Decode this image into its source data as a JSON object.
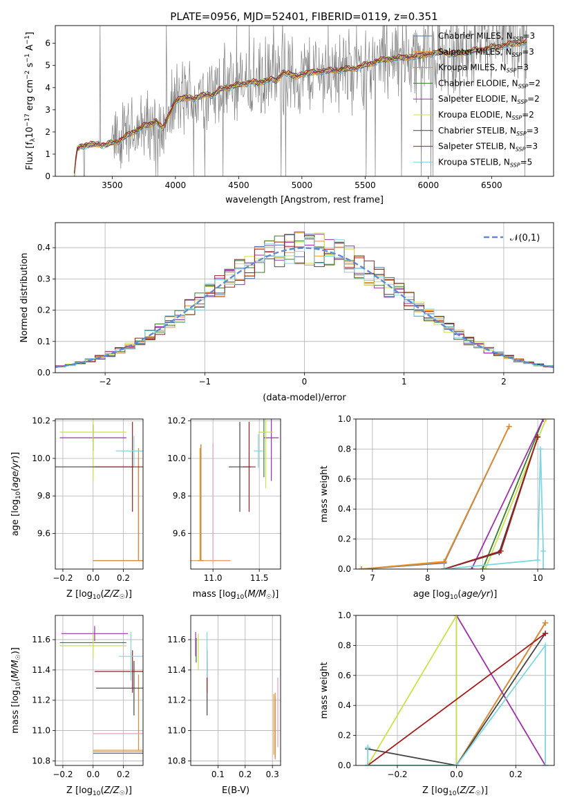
{
  "figure": {
    "title": "PLATE=0956, MJD=52401, FIBERID=0119, z=0.351",
    "colors": {
      "chabrier_miles": "#4c72b0",
      "salpeter_miles": "#f39c12",
      "kroupa_miles": "#d98b3a",
      "chabrier_elodie": "#3a7a2e",
      "salpeter_elodie": "#9b30a8",
      "kroupa_elodie": "#cbe04a",
      "chabrier_stelib": "#444444",
      "salpeter_stelib": "#a61b1b",
      "kroupa_stelib": "#7fd6e0",
      "data": "#808080",
      "normal": "#5b8bd6",
      "grid": "#b0b0b0"
    }
  },
  "chart_data": [
    {
      "id": "spectrum",
      "type": "line",
      "title": "PLATE=0956, MJD=52401, FIBERID=0119, z=0.351",
      "xlabel": "wavelength [Angstrom, rest frame]",
      "ylabel": "Flux [f_λ 10^-17 erg cm^-2 s^-1 A^-1]",
      "xlim": [
        3050,
        6990
      ],
      "ylim": [
        0,
        6.8
      ],
      "xticks": [
        3500,
        4000,
        4500,
        5000,
        5500,
        6000,
        6500
      ],
      "yticks": [
        0,
        1,
        2,
        3,
        4,
        5,
        6
      ],
      "grid": false,
      "legend_position": "top-right",
      "legend": [
        "Chabrier MILES, N_SSP=3",
        "Salpeter MILES, N_SSP=3",
        "Kroupa MILES, N_SSP=3",
        "Chabrier ELODIE, N_SSP=2",
        "Salpeter ELODIE, N_SSP=2",
        "Kroupa ELODIE, N_SSP=2",
        "Chabrier STELIB, N_SSP=3",
        "Salpeter STELIB, N_SSP=3",
        "Kroupa STELIB, N_SSP=5"
      ],
      "model_curve": {
        "x": [
          3200,
          3220,
          3250,
          3300,
          3350,
          3400,
          3450,
          3500,
          3550,
          3600,
          3650,
          3700,
          3750,
          3800,
          3850,
          3900,
          3950,
          4000,
          4050,
          4100,
          4150,
          4200,
          4250,
          4300,
          4350,
          4400,
          4450,
          4500,
          4550,
          4600,
          4650,
          4700,
          4750,
          4800,
          4850,
          4900,
          4950,
          5000,
          5100,
          5200,
          5300,
          5400,
          5500,
          5600,
          5700,
          5800,
          5900,
          6000,
          6100,
          6200,
          6300,
          6400,
          6500,
          6600,
          6700,
          6780
        ],
        "y": [
          0,
          1.2,
          1.35,
          1.4,
          1.42,
          1.45,
          1.4,
          1.5,
          1.6,
          1.75,
          1.95,
          2.1,
          2.25,
          2.35,
          2.5,
          2.1,
          2.8,
          3.4,
          3.5,
          3.55,
          3.5,
          3.6,
          3.7,
          3.65,
          3.9,
          4.0,
          4.05,
          4.1,
          4.2,
          4.25,
          4.2,
          4.3,
          4.35,
          4.3,
          4.7,
          4.6,
          4.5,
          4.6,
          4.7,
          4.75,
          4.8,
          4.85,
          5.0,
          5.2,
          5.3,
          5.35,
          5.4,
          5.5,
          5.6,
          5.5,
          5.6,
          5.7,
          5.8,
          5.9,
          6.0,
          6.05
        ]
      }
    },
    {
      "id": "residuals",
      "type": "line",
      "xlabel": "(data-model)/error",
      "ylabel": "Normed distribution",
      "xlim": [
        -2.5,
        2.5
      ],
      "ylim": [
        0,
        0.48
      ],
      "xticks": [
        -2,
        -1,
        0,
        1,
        2
      ],
      "yticks": [
        0,
        0.1,
        0.2,
        0.3,
        0.4
      ],
      "grid": true,
      "legend_position": "top-right",
      "legend": [
        "𝒩(0,1)"
      ]
    },
    {
      "id": "age_vs_Z",
      "type": "scatter",
      "xlabel": "Z [log10(Z/Z☉)]",
      "ylabel": "age [log10(age/yr)]",
      "xlim": [
        -0.25,
        0.33
      ],
      "ylim": [
        9.41,
        10.21
      ],
      "xticks": [
        -0.2,
        0.0,
        0.2
      ],
      "yticks": [
        9.6,
        9.8,
        10.0,
        10.2
      ],
      "grid": true,
      "points": [
        {
          "model": "chabrier_miles",
          "x": 0.3,
          "y": 9.455,
          "xerr": 0.3,
          "yerr": [
            0,
            0.55
          ]
        },
        {
          "model": "salpeter_miles",
          "x": 0.3,
          "y": 9.455,
          "xerr": 0.28,
          "yerr": [
            0,
            0.5
          ]
        },
        {
          "model": "kroupa_miles",
          "x": 0.3,
          "y": 9.455,
          "xerr": 0.3,
          "yerr": [
            0,
            0.6
          ]
        },
        {
          "model": "chabrier_elodie",
          "x": 0.0,
          "y": 10.14,
          "xerr": 0.0,
          "yerr": 0.04
        },
        {
          "model": "salpeter_elodie",
          "x": 0.0,
          "y": 10.11,
          "xerr": 0.22,
          "yerr": 0.07
        },
        {
          "model": "kroupa_elodie",
          "x": 0.0,
          "y": 10.14,
          "xerr": 0.22,
          "yerr": 0.26
        },
        {
          "model": "chabrier_stelib",
          "x": 0.01,
          "y": 9.955,
          "xerr": 0.26,
          "yerr": 0.0
        },
        {
          "model": "salpeter_stelib",
          "x": 0.26,
          "y": 9.955,
          "xerr": 0.25,
          "yerr": 0.24
        },
        {
          "model": "kroupa_stelib",
          "x": 0.27,
          "y": 10.04,
          "xerr": 0.12,
          "yerr": 0.08
        }
      ]
    },
    {
      "id": "age_vs_mass",
      "type": "scatter",
      "xlabel": "mass [log10(M/M☉)]",
      "ylabel": "",
      "xlim": [
        10.76,
        11.73
      ],
      "ylim": [
        9.41,
        10.21
      ],
      "xticks": [
        11.0,
        11.5
      ],
      "yticks": [
        9.6,
        9.8,
        10.0,
        10.2
      ],
      "grid": true,
      "points": [
        {
          "model": "chabrier_miles",
          "x": 10.87,
          "y": 9.455,
          "xerr": 0.03,
          "yerr": [
            0,
            0.62
          ]
        },
        {
          "model": "salpeter_miles",
          "x": 10.86,
          "y": 9.455,
          "xerr": 0.02,
          "yerr": [
            0,
            0.6
          ]
        },
        {
          "model": "kroupa_miles",
          "x": 10.87,
          "y": 9.455,
          "xerr": 0.32,
          "yerr": [
            0,
            0.62
          ]
        },
        {
          "model": "chabrier_elodie",
          "x": 11.55,
          "y": 10.14,
          "xerr": 0.0,
          "yerr": 0.24
        },
        {
          "model": "salpeter_elodie",
          "x": 11.63,
          "y": 10.11,
          "xerr": 0.08,
          "yerr": 0.23
        },
        {
          "model": "kroupa_elodie",
          "x": 11.57,
          "y": 10.14,
          "xerr": 0.08,
          "yerr": 0.3
        },
        {
          "model": "chabrier_stelib",
          "x": 11.29,
          "y": 9.955,
          "xerr": 0.12,
          "yerr": 0.24
        },
        {
          "model": "salpeter_stelib",
          "x": 11.39,
          "y": 9.955,
          "xerr": 0.07,
          "yerr": 0.24
        },
        {
          "model": "kroupa_stelib",
          "x": 11.49,
          "y": 10.04,
          "xerr": 0.05,
          "yerr": 0.09
        },
        {
          "model": "kroupa_miles_alt",
          "x": 11.0,
          "y": 9.76,
          "xerr": 0.0,
          "yerr": 0.32
        }
      ]
    },
    {
      "id": "weight_vs_age",
      "type": "line",
      "xlabel": "age [log10(age/yr)]",
      "ylabel": "mass weight",
      "xlim": [
        6.7,
        10.3
      ],
      "ylim": [
        0,
        1.0
      ],
      "xticks": [
        7,
        8,
        9,
        10
      ],
      "yticks": [
        0.0,
        0.2,
        0.4,
        0.6,
        0.8,
        1.0
      ],
      "grid": true,
      "series": [
        {
          "model": "chabrier_miles",
          "x": [
            6.8,
            8.3,
            9.48
          ],
          "y": [
            0.0,
            0.04,
            0.95
          ]
        },
        {
          "model": "salpeter_miles",
          "x": [
            6.8,
            8.3,
            9.48
          ],
          "y": [
            0.0,
            0.05,
            0.95
          ]
        },
        {
          "model": "kroupa_miles",
          "x": [
            6.8,
            8.3,
            9.48
          ],
          "y": [
            0.0,
            0.045,
            0.95
          ]
        },
        {
          "model": "chabrier_elodie",
          "x": [
            9.0,
            10.1
          ],
          "y": [
            0.0,
            1.0
          ]
        },
        {
          "model": "salpeter_elodie",
          "x": [
            8.8,
            10.1
          ],
          "y": [
            0.0,
            1.0
          ]
        },
        {
          "model": "kroupa_elodie",
          "x": [
            9.05,
            10.15
          ],
          "y": [
            0.0,
            1.0
          ]
        },
        {
          "model": "chabrier_stelib",
          "x": [
            8.3,
            9.3,
            10.0
          ],
          "y": [
            0.0,
            0.11,
            0.88
          ]
        },
        {
          "model": "salpeter_stelib",
          "x": [
            8.3,
            9.33,
            10.0
          ],
          "y": [
            0.0,
            0.12,
            0.88
          ]
        },
        {
          "model": "kroupa_stelib",
          "x": [
            8.3,
            10.0,
            10.05,
            10.1,
            10.1
          ],
          "y": [
            0.0,
            0.06,
            0.8,
            0.12,
            0.0
          ]
        }
      ]
    },
    {
      "id": "mass_vs_Z",
      "type": "scatter",
      "xlabel": "Z [log10(Z/Z☉)]",
      "ylabel": "mass [log10(M/M☉)]",
      "xlim": [
        -0.25,
        0.33
      ],
      "ylim": [
        10.77,
        11.76
      ],
      "xticks": [
        -0.2,
        0.0,
        0.2
      ],
      "yticks": [
        10.8,
        11.0,
        11.2,
        11.4,
        11.6
      ],
      "grid": true,
      "points": [
        {
          "model": "chabrier_miles",
          "x": 0.3,
          "y": 10.85,
          "xerr": 0.3,
          "yerr": 0.0
        },
        {
          "model": "salpeter_miles",
          "x": 0.3,
          "y": 10.86,
          "xerr": 0.3,
          "yerr": 0.0
        },
        {
          "model": "kroupa_miles",
          "x": 0.3,
          "y": 10.87,
          "xerr": 0.3,
          "yerr": [
            0,
            0.5
          ]
        },
        {
          "model": "chabrier_elodie",
          "x": 0.0,
          "y": 11.58,
          "xerr": 0.22,
          "yerr": 0.0
        },
        {
          "model": "salpeter_elodie",
          "x": 0.01,
          "y": 11.64,
          "xerr": 0.22,
          "yerr": 0.05
        },
        {
          "model": "kroupa_elodie",
          "x": 0.0,
          "y": 11.56,
          "xerr": 0.22,
          "yerr": 0.08
        },
        {
          "model": "chabrier_stelib",
          "x": 0.27,
          "y": 11.28,
          "xerr": 0.25,
          "yerr": 0.18
        },
        {
          "model": "salpeter_stelib",
          "x": 0.26,
          "y": 11.39,
          "xerr": 0.25,
          "yerr": 0.14
        },
        {
          "model": "kroupa_stelib",
          "x": 0.25,
          "y": 11.49,
          "xerr": 0.08,
          "yerr": 0.16
        },
        {
          "model": "pink",
          "x": 0.3,
          "y": 10.98,
          "xerr": 0.3,
          "yerr": 0.0
        }
      ]
    },
    {
      "id": "mass_vs_ebv",
      "type": "scatter",
      "xlabel": "E(B-V)",
      "ylabel": "",
      "xlim": [
        0.0,
        0.33
      ],
      "ylim": [
        10.77,
        11.76
      ],
      "xticks": [
        0.1,
        0.2,
        0.3
      ],
      "yticks": [
        10.8,
        11.0,
        11.2,
        11.4,
        11.6
      ],
      "grid": true,
      "points": [
        {
          "model": "chabrier_miles",
          "x": 0.31,
          "y": 11.02,
          "xerr": 0.0,
          "yerr": 0.2
        },
        {
          "model": "salpeter_miles",
          "x": 0.305,
          "y": 11.04,
          "xerr": 0.0,
          "yerr": 0.2
        },
        {
          "model": "kroupa_miles",
          "x": 0.31,
          "y": 11.03,
          "xerr": 0.0,
          "yerr": 0.22
        },
        {
          "model": "chabrier_elodie",
          "x": 0.02,
          "y": 11.53,
          "xerr": 0.0,
          "yerr": 0.08
        },
        {
          "model": "salpeter_elodie",
          "x": 0.018,
          "y": 11.57,
          "xerr": 0.0,
          "yerr": 0.08
        },
        {
          "model": "kroupa_elodie",
          "x": 0.028,
          "y": 11.52,
          "xerr": 0.0,
          "yerr": 0.12
        },
        {
          "model": "chabrier_stelib",
          "x": 0.06,
          "y": 11.28,
          "xerr": 0.0,
          "yerr": 0.18
        },
        {
          "model": "salpeter_stelib",
          "x": 0.06,
          "y": 11.39,
          "xerr": 0.0,
          "yerr": 0.14
        },
        {
          "model": "kroupa_stelib",
          "x": 0.06,
          "y": 11.5,
          "xerr": 0.0,
          "yerr": 0.15
        },
        {
          "model": "pink",
          "x": 0.32,
          "y": 11.12,
          "xerr": 0.0,
          "yerr": 0.23
        }
      ]
    },
    {
      "id": "weight_vs_Z",
      "type": "line",
      "xlabel": "Z [log10(Z/Z☉)]",
      "ylabel": "mass weight",
      "xlim": [
        -0.34,
        0.33
      ],
      "ylim": [
        0,
        1.0
      ],
      "xticks": [
        -0.2,
        0.0,
        0.2
      ],
      "yticks": [
        0.0,
        0.2,
        0.4,
        0.6,
        0.8,
        1.0
      ],
      "grid": true,
      "series": [
        {
          "model": "chabrier_miles",
          "x": [
            -0.3,
            0.0,
            0.3
          ],
          "y": [
            0.0,
            0.0,
            0.95
          ]
        },
        {
          "model": "salpeter_miles",
          "x": [
            -0.3,
            0.0,
            0.3
          ],
          "y": [
            0.0,
            0.0,
            0.95
          ]
        },
        {
          "model": "kroupa_miles",
          "x": [
            -0.3,
            0.0,
            0.3
          ],
          "y": [
            0.0,
            0.0,
            0.95
          ]
        },
        {
          "model": "chabrier_elodie",
          "x": [
            0.0,
            0.0
          ],
          "y": [
            0.0,
            1.0
          ]
        },
        {
          "model": "salpeter_elodie",
          "x": [
            0.0,
            0.3
          ],
          "y": [
            1.0,
            0.0
          ]
        },
        {
          "model": "kroupa_elodie",
          "x": [
            -0.3,
            0.0,
            0.0
          ],
          "y": [
            0.0,
            1.0,
            0.0
          ]
        },
        {
          "model": "chabrier_stelib",
          "x": [
            -0.3,
            0.0,
            0.3
          ],
          "y": [
            0.11,
            0.0,
            0.88
          ]
        },
        {
          "model": "salpeter_stelib",
          "x": [
            -0.3,
            0.3
          ],
          "y": [
            0.0,
            0.88
          ]
        },
        {
          "model": "kroupa_stelib",
          "x": [
            -0.3,
            -0.3,
            0.0,
            0.3,
            0.3
          ],
          "y": [
            0.12,
            0.0,
            0.0,
            0.8,
            0.0
          ]
        }
      ]
    }
  ]
}
